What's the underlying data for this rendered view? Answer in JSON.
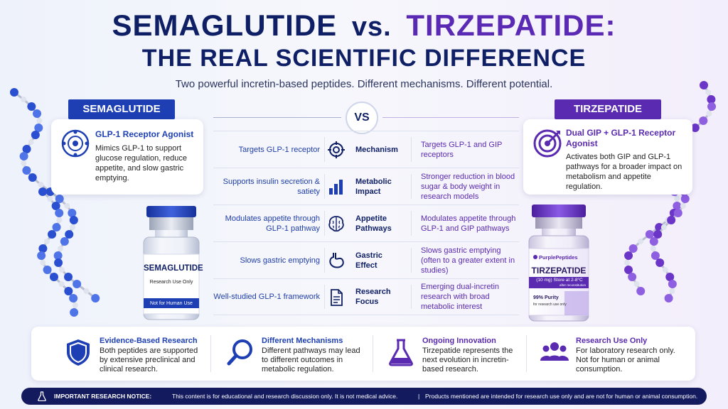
{
  "title": {
    "part1": "SEMAGLUTIDE",
    "vs": "vs.",
    "part2": "TIRZEPATIDE:",
    "line2": "THE REAL SCIENTIFIC DIFFERENCE"
  },
  "subtitle": "Two powerful incretin-based peptides. Different mechanisms. Different potential.",
  "vs_label": "VS",
  "semaglutide": {
    "header": "SEMAGLUTIDE",
    "card_title": "GLP-1 Receptor Agonist",
    "card_desc": "Mimics GLP-1 to support glucose regulation, reduce appetite, and slow gastric emptying.",
    "vial_name": "SEMAGLUTIDE",
    "vial_use": "Research Use Only",
    "vial_band": "Not for Human Use"
  },
  "tirzepatide": {
    "header": "TIRZEPATIDE",
    "card_title": "Dual GIP + GLP-1 Receptor Agonist",
    "card_desc": "Activates both GIP and GLP-1 pathways for a broader impact on metabolism and appetite regulation.",
    "vial_brand": "PurplePeptides",
    "vial_name": "TIRZEPATIDE",
    "vial_dose": "(10 mg) Store at 2-8°C",
    "vial_dose_sub": "after reconstitution",
    "vial_purity": "99% Purity",
    "vial_purity_sub": "for research use only"
  },
  "rows": [
    {
      "left": "Targets GLP-1 receptor",
      "label": "Mechanism",
      "right": "Targets GLP-1 and GIP receptors",
      "icon": "target-icon"
    },
    {
      "left": "Supports insulin secretion & satiety",
      "label": "Metabolic Impact",
      "right": "Stronger reduction in blood sugar & body weight in research models",
      "icon": "bar-chart-icon"
    },
    {
      "left": "Modulates appetite through GLP-1 pathway",
      "label": "Appetite Pathways",
      "right": "Modulates appetite through GLP-1 and GIP pathways",
      "icon": "brain-icon"
    },
    {
      "left": "Slows gastric emptying",
      "label": "Gastric Effect",
      "right": "Slows gastric emptying (often to a greater extent in studies)",
      "icon": "stomach-icon"
    },
    {
      "left": "Well-studied GLP-1 framework",
      "label": "Research Focus",
      "right": "Emerging dual-incretin research with broad metabolic interest",
      "icon": "document-icon"
    }
  ],
  "features": [
    {
      "title": "Evidence-Based Research",
      "desc": "Both peptides are supported by extensive preclinical and clinical research.",
      "icon": "shield-icon"
    },
    {
      "title": "Different Mechanisms",
      "desc": "Different pathways may lead to different outcomes in metabolic regulation.",
      "icon": "magnifier-icon"
    },
    {
      "title": "Ongoing Innovation",
      "desc": "Tirzepatide represents the next evolution in incretin-based research.",
      "icon": "flask-icon"
    },
    {
      "title": "Research Use Only",
      "desc": "For laboratory research only. Not for human or animal consumption.",
      "icon": "people-icon"
    }
  ],
  "notice": {
    "bold": "IMPORTANT RESEARCH NOTICE:",
    "text": "This content is for educational and research discussion only. It is not medical advice.",
    "divider": "|",
    "text2": "Products mentioned are intended for research use only and are not for human or animal consumption."
  },
  "colors": {
    "sema_blue": "#1d3fb3",
    "tirz_purple": "#5a2ab0",
    "navy": "#0f1f66"
  }
}
